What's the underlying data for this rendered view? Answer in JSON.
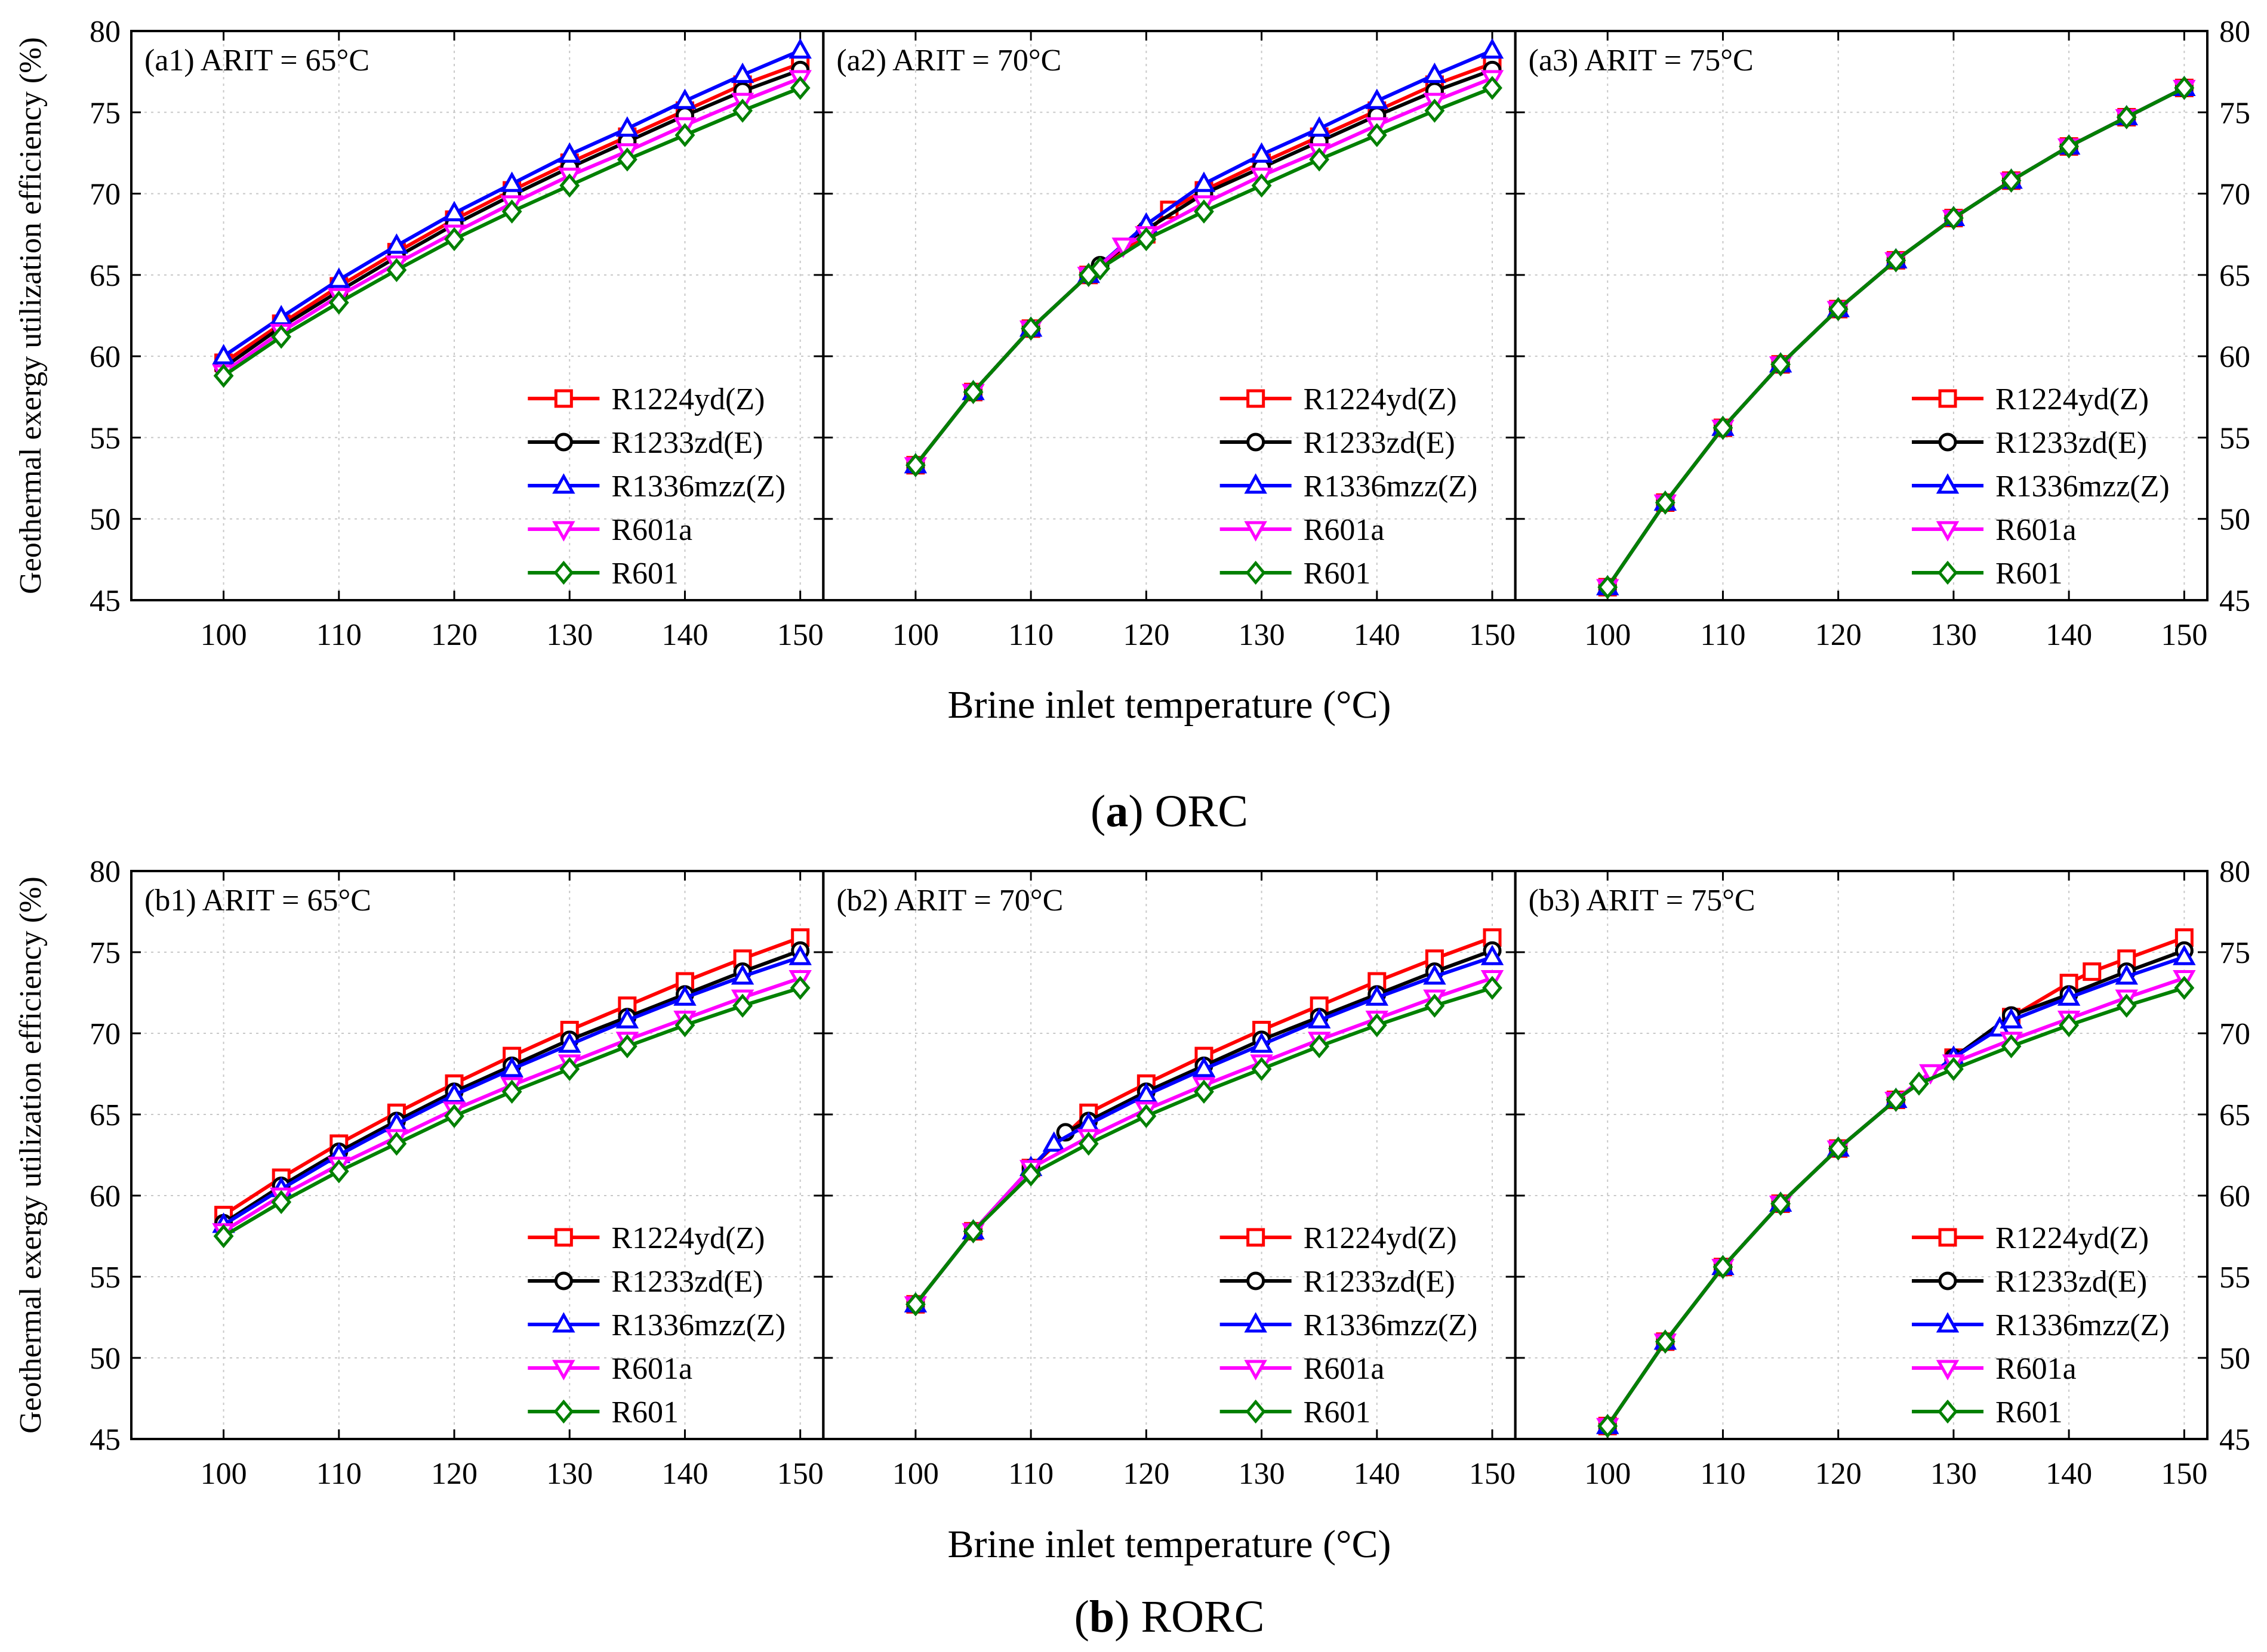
{
  "figure": {
    "colors": {
      "R1224yd(Z)": "#ff0000",
      "R1233zd(E)": "#000000",
      "R1336mzz(Z)": "#0000ff",
      "R601a": "#ff00ff",
      "R601": "#008000"
    },
    "markers": {
      "R1224yd(Z)": "square",
      "R1233zd(E)": "circle",
      "R1336mzz(Z)": "triangle-up",
      "R601a": "triangle-down",
      "R601": "diamond"
    }
  },
  "chart_data": [
    {
      "type": "line",
      "group": "a",
      "caption_letter": "a",
      "caption_text": ") ORC",
      "caption_open": "(",
      "xlabel": "Brine inlet temperature (°C)",
      "ylabel": "Geothermal exergy utilization efficiency (%)",
      "xlim": [
        92,
        152
      ],
      "ylim": [
        45,
        80
      ],
      "xticks": [
        "100",
        "110",
        "120",
        "130",
        "140",
        "150"
      ],
      "yticks": [
        "45",
        "50",
        "55",
        "60",
        "65",
        "70",
        "75",
        "80"
      ],
      "legend_position": "bottom-right",
      "grid": true,
      "panels": [
        {
          "label": "(a1) ARIT = 65°C",
          "x": [
            100,
            105,
            110,
            115,
            120,
            125,
            130,
            135,
            140,
            145,
            150
          ],
          "series": [
            {
              "name": "R1224yd(Z)",
              "values": [
                59.6,
                62.0,
                64.3,
                66.4,
                68.4,
                70.2,
                71.9,
                73.5,
                75.1,
                76.7,
                78.0
              ]
            },
            {
              "name": "R1233zd(E)",
              "values": [
                59.3,
                61.8,
                64.0,
                66.1,
                68.1,
                69.9,
                71.6,
                73.2,
                74.8,
                76.3,
                77.6
              ]
            },
            {
              "name": "R1336mzz(Z)",
              "values": [
                60.0,
                62.4,
                64.7,
                66.8,
                68.8,
                70.6,
                72.4,
                74.0,
                75.7,
                77.3,
                78.8
              ]
            },
            {
              "name": "R601a",
              "values": [
                59.0,
                61.5,
                63.7,
                65.7,
                67.6,
                69.4,
                71.1,
                72.6,
                74.2,
                75.7,
                77.1
              ]
            },
            {
              "name": "R601",
              "values": [
                58.8,
                61.2,
                63.3,
                65.3,
                67.2,
                68.9,
                70.5,
                72.1,
                73.6,
                75.1,
                76.5
              ]
            }
          ]
        },
        {
          "label": "(a2) ARIT = 70°C",
          "x": [
            100,
            105,
            110,
            115,
            116,
            118,
            120,
            122,
            125,
            130,
            135,
            140,
            145,
            150
          ],
          "series": [
            {
              "name": "R1224yd(Z)",
              "values": [
                53.3,
                57.8,
                61.7,
                65.0,
                null,
                null,
                67.5,
                69.0,
                70.2,
                71.9,
                73.5,
                75.1,
                76.7,
                78.0
              ]
            },
            {
              "name": "R1233zd(E)",
              "values": [
                53.3,
                57.8,
                61.7,
                65.0,
                65.6,
                null,
                67.8,
                null,
                70.0,
                71.6,
                73.2,
                74.8,
                76.3,
                77.6
              ]
            },
            {
              "name": "R1336mzz(Z)",
              "values": [
                53.3,
                57.8,
                61.7,
                65.0,
                null,
                null,
                68.1,
                null,
                70.6,
                72.4,
                74.0,
                75.7,
                77.3,
                78.8
              ]
            },
            {
              "name": "R601a",
              "values": [
                53.3,
                57.8,
                61.7,
                65.0,
                null,
                66.8,
                67.5,
                null,
                69.4,
                71.1,
                72.6,
                74.2,
                75.7,
                77.1
              ]
            },
            {
              "name": "R601",
              "values": [
                53.3,
                57.8,
                61.7,
                65.0,
                65.4,
                null,
                67.2,
                null,
                68.9,
                70.5,
                72.1,
                73.6,
                75.1,
                76.5
              ]
            }
          ]
        },
        {
          "label": "(a3) ARIT = 75°C",
          "x": [
            100,
            105,
            110,
            115,
            120,
            125,
            130,
            135,
            140,
            145,
            150
          ],
          "series": [
            {
              "name": "R1224yd(Z)",
              "values": [
                45.8,
                51.0,
                55.6,
                59.5,
                62.9,
                65.9,
                68.5,
                70.8,
                72.9,
                74.7,
                76.5
              ]
            },
            {
              "name": "R1233zd(E)",
              "values": [
                45.8,
                51.0,
                55.6,
                59.5,
                62.9,
                65.9,
                68.5,
                70.8,
                72.9,
                74.7,
                76.5
              ]
            },
            {
              "name": "R1336mzz(Z)",
              "values": [
                45.8,
                51.0,
                55.6,
                59.5,
                62.9,
                65.9,
                68.5,
                70.8,
                72.9,
                74.7,
                76.5
              ]
            },
            {
              "name": "R601a",
              "values": [
                45.8,
                51.0,
                55.6,
                59.5,
                62.9,
                65.9,
                68.5,
                70.8,
                72.9,
                74.7,
                76.5
              ]
            },
            {
              "name": "R601",
              "values": [
                45.8,
                51.0,
                55.6,
                59.5,
                62.9,
                65.9,
                68.5,
                70.8,
                72.9,
                74.7,
                76.5
              ]
            }
          ]
        }
      ]
    },
    {
      "type": "line",
      "group": "b",
      "caption_letter": "b",
      "caption_text": ") RORC",
      "caption_open": "(",
      "xlabel": "Brine inlet temperature (°C)",
      "ylabel": "Geothermal exergy utilization efficiency (%)",
      "xlim": [
        92,
        152
      ],
      "ylim": [
        45,
        80
      ],
      "xticks": [
        "100",
        "110",
        "120",
        "130",
        "140",
        "150"
      ],
      "yticks": [
        "45",
        "50",
        "55",
        "60",
        "65",
        "70",
        "75",
        "80"
      ],
      "legend_position": "bottom-right",
      "grid": true,
      "panels": [
        {
          "label": "(b1) ARIT = 65°C",
          "x": [
            100,
            105,
            110,
            115,
            120,
            125,
            130,
            135,
            140,
            145,
            150
          ],
          "series": [
            {
              "name": "R1224yd(Z)",
              "values": [
                58.8,
                61.1,
                63.2,
                65.1,
                66.9,
                68.6,
                70.2,
                71.7,
                73.2,
                74.6,
                75.9
              ]
            },
            {
              "name": "R1233zd(E)",
              "values": [
                58.3,
                60.6,
                62.7,
                64.6,
                66.4,
                68.0,
                69.6,
                71.0,
                72.4,
                73.8,
                75.1
              ]
            },
            {
              "name": "R1336mzz(Z)",
              "values": [
                58.2,
                60.4,
                62.5,
                64.4,
                66.2,
                67.8,
                69.3,
                70.8,
                72.2,
                73.5,
                74.7
              ]
            },
            {
              "name": "R601a",
              "values": [
                57.8,
                60.0,
                61.9,
                63.6,
                65.3,
                66.8,
                68.2,
                69.6,
                70.9,
                72.2,
                73.4
              ]
            },
            {
              "name": "R601",
              "values": [
                57.5,
                59.6,
                61.5,
                63.2,
                64.9,
                66.4,
                67.8,
                69.2,
                70.5,
                71.7,
                72.8
              ]
            }
          ]
        },
        {
          "label": "(b2) ARIT = 70°C",
          "x": [
            100,
            105,
            110,
            112,
            113,
            115,
            120,
            125,
            130,
            135,
            140,
            145,
            150
          ],
          "series": [
            {
              "name": "R1224yd(Z)",
              "values": [
                53.3,
                57.8,
                61.7,
                null,
                null,
                65.1,
                66.9,
                68.6,
                70.2,
                71.7,
                73.2,
                74.6,
                75.9
              ]
            },
            {
              "name": "R1233zd(E)",
              "values": [
                53.3,
                57.8,
                61.7,
                null,
                63.9,
                64.6,
                66.4,
                68.0,
                69.6,
                71.0,
                72.4,
                73.8,
                75.1
              ]
            },
            {
              "name": "R1336mzz(Z)",
              "values": [
                53.3,
                57.8,
                61.7,
                63.2,
                null,
                64.4,
                66.2,
                67.8,
                69.3,
                70.8,
                72.2,
                73.5,
                74.7
              ]
            },
            {
              "name": "R601a",
              "values": [
                53.3,
                57.8,
                61.7,
                null,
                null,
                63.6,
                65.3,
                66.8,
                68.2,
                69.6,
                70.9,
                72.2,
                73.4
              ]
            },
            {
              "name": "R601",
              "values": [
                53.3,
                57.8,
                61.3,
                null,
                null,
                63.2,
                64.9,
                66.4,
                67.8,
                69.2,
                70.5,
                71.7,
                72.8
              ]
            }
          ]
        },
        {
          "label": "(b3) ARIT = 75°C",
          "x": [
            100,
            105,
            110,
            115,
            120,
            125,
            127,
            128,
            130,
            134,
            135,
            140,
            142,
            145,
            150
          ],
          "series": [
            {
              "name": "R1224yd(Z)",
              "values": [
                45.8,
                51.0,
                55.6,
                59.5,
                62.9,
                65.9,
                null,
                null,
                68.5,
                null,
                71.0,
                73.1,
                73.8,
                74.6,
                75.9
              ]
            },
            {
              "name": "R1233zd(E)",
              "values": [
                45.8,
                51.0,
                55.6,
                59.5,
                62.9,
                65.9,
                null,
                null,
                68.5,
                null,
                71.1,
                72.4,
                null,
                73.8,
                75.1
              ]
            },
            {
              "name": "R1336mzz(Z)",
              "values": [
                45.8,
                51.0,
                55.6,
                59.5,
                62.9,
                65.9,
                null,
                null,
                68.5,
                70.3,
                70.8,
                72.2,
                null,
                73.5,
                74.7
              ]
            },
            {
              "name": "R601a",
              "values": [
                45.8,
                51.0,
                55.6,
                59.5,
                62.9,
                65.9,
                null,
                67.6,
                68.2,
                null,
                69.6,
                70.9,
                null,
                72.2,
                73.4
              ]
            },
            {
              "name": "R601",
              "values": [
                45.8,
                51.0,
                55.6,
                59.5,
                62.9,
                65.9,
                66.9,
                null,
                67.8,
                null,
                69.2,
                70.5,
                null,
                71.7,
                72.8
              ]
            }
          ]
        }
      ]
    }
  ]
}
